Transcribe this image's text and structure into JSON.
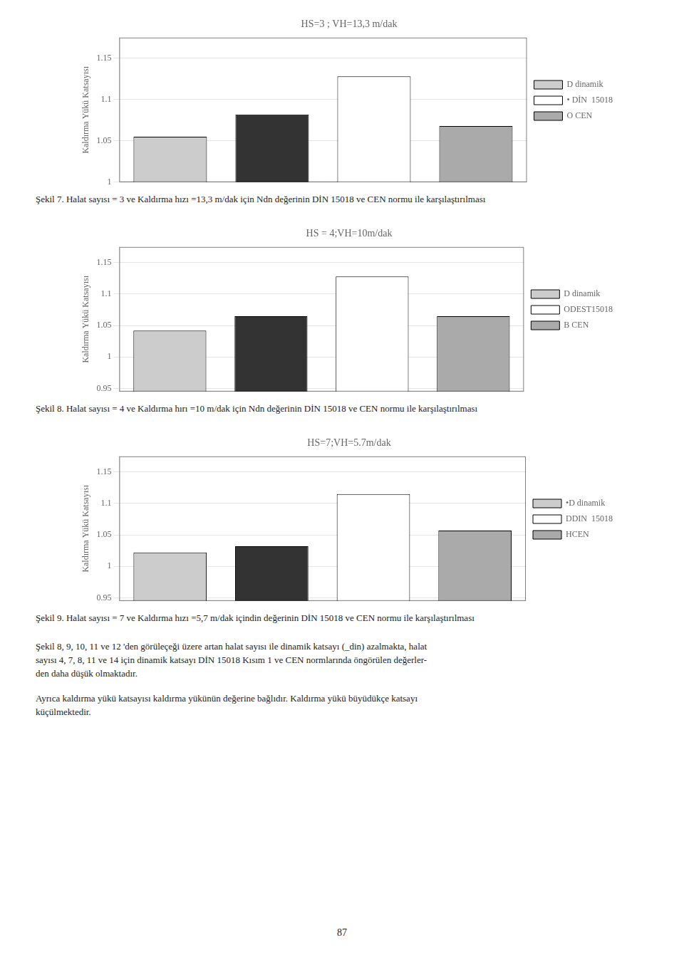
{
  "chart_data": [
    {
      "type": "bar",
      "title": "HS=3 ; VH=13,3 m/dak",
      "ylabel": "Kaldırma Yükü Katsayısı",
      "categories": [
        null,
        null,
        null,
        null
      ],
      "series": [
        {
          "name": "D dinamik",
          "color": "#cccccc",
          "values": [
            1.055,
            null,
            null,
            null
          ]
        },
        {
          "color": "#333333",
          "values": [
            null,
            1.082,
            null,
            null
          ]
        },
        {
          "name": "• DİN  15018",
          "color": "#ffffff",
          "values": [
            null,
            null,
            1.128,
            null
          ]
        },
        {
          "name": "O CEN",
          "color": "#aaaaaa",
          "values": [
            null,
            null,
            null,
            1.068
          ]
        }
      ],
      "ylim": [
        1.0,
        1.175
      ],
      "yticks": [
        1,
        1.05,
        1.1,
        1.15
      ],
      "grid": true,
      "legend": "right",
      "tick_labels": "y"
    },
    {
      "type": "bar",
      "title": "HS = 4;VH=10m/dak",
      "ylabel": "Kaldırma Yükü Katsayısı",
      "categories": [
        null,
        null,
        null,
        null
      ],
      "series": [
        {
          "name": "D dinamik",
          "color": "#cccccc",
          "values": [
            1.042,
            null,
            null,
            null
          ]
        },
        {
          "color": "#333333",
          "values": [
            null,
            1.065,
            null,
            null
          ]
        },
        {
          "name": "ODEST15018",
          "color": "#ffffff",
          "values": [
            null,
            null,
            1.128,
            null
          ]
        },
        {
          "name": "B CEN",
          "color": "#aaaaaa",
          "values": [
            null,
            null,
            null,
            1.065
          ]
        }
      ],
      "ylim": [
        0.945,
        1.175
      ],
      "yticks": [
        0.95,
        1,
        1.05,
        1.1,
        1.15
      ],
      "grid": true,
      "legend": "right",
      "tick_labels": "y"
    },
    {
      "type": "bar",
      "title": "HS=7;VH=5.7m/dak",
      "ylabel": "Kaldırma Yükü Katsayısı",
      "categories": [
        null,
        null,
        null,
        null
      ],
      "series": [
        {
          "name": "•D dinamik",
          "color": "#cccccc",
          "values": [
            1.022,
            null,
            null,
            null
          ]
        },
        {
          "color": "#333333",
          "values": [
            null,
            1.032,
            null,
            null
          ]
        },
        {
          "name": "DDIN  15018",
          "color": "#ffffff",
          "values": [
            null,
            null,
            1.115,
            null
          ]
        },
        {
          "name": "HCEN",
          "color": "#aaaaaa",
          "values": [
            null,
            null,
            null,
            1.057
          ]
        }
      ],
      "ylim": [
        0.945,
        1.175
      ],
      "yticks": [
        0.95,
        1,
        1.05,
        1.1,
        1.15
      ],
      "grid": true,
      "legend": "right",
      "tick_labels": "y"
    }
  ],
  "captions": [
    "Şekil 7.  Halat sayısı = 3 ve Kaldırma hızı =13,3 m/dak için Νdn değerinin DİN 15018 ve CEN normu ile karşılaştırılması",
    "Şekil 8.  Halat sayısı = 4 ve Kaldırma hırı =10 m/dak için Νdn değerinin DİN 15018 ve CEN normu ile karşılaştırılması",
    "Şekil 9.  Halat sayısı = 7 ve Kaldırma hızı =5,7 m/dak içindin değerinin DİN 15018 ve CEN normu ile karşılaştırılması"
  ],
  "paragraphs": [
    [
      "Şekil 8, 9, 10, 11 ve 12 'den görüleçeği üzere artan halat sayısı ile dinamik katsayı (_din) azalmakta, halat",
      "sayısı 4, 7, 8, 11 ve 14 için dinamik katsayı DİN 15018 Kısım 1 ve CEN normlarında öngörülen değerler-",
      "den daha düşük olmaktadır."
    ],
    [
      "Ayrıca kaldırma yükü katsayısı kaldırma yükünün değerine bağlıdır.  Kaldırma yükü büyüdükçe katsayı",
      "küçülmektedir."
    ]
  ],
  "page_number": "87"
}
